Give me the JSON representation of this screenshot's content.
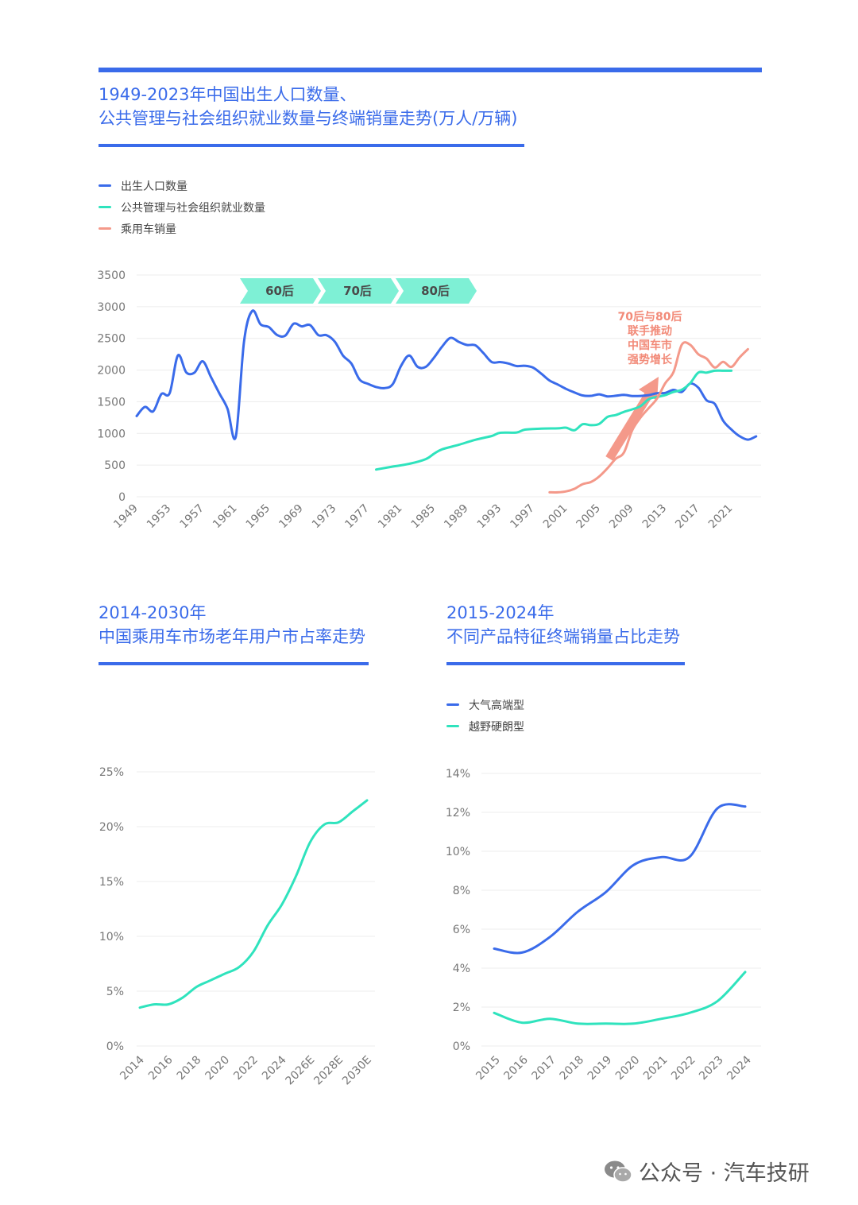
{
  "chart1": {
    "title_line1": "1949-2023年中国出生人口数量、",
    "title_line2": "公共管理与社会组织就业数量与终端销量走势(万人/万辆)",
    "legend": [
      {
        "name": "出生人口数量",
        "color": "#3a6bea"
      },
      {
        "name": "公共管理与社会组织就业数量",
        "color": "#2fe3bd"
      },
      {
        "name": "乘用车销量",
        "color": "#f4998a"
      }
    ],
    "y_ticks": [
      "3500",
      "3000",
      "2500",
      "2000",
      "1500",
      "1000",
      "500",
      "0"
    ],
    "x_ticks": [
      "1949",
      "1953",
      "1957",
      "1961",
      "1965",
      "1969",
      "1973",
      "1977",
      "1981",
      "1985",
      "1989",
      "1993",
      "1997",
      "2001",
      "2005",
      "2009",
      "2013",
      "2017",
      "2021"
    ],
    "generation_labels": [
      "60后",
      "70后",
      "80后"
    ],
    "annotation": [
      "70后与80后",
      "联手推动",
      "中国车市",
      "强势增长"
    ]
  },
  "chart2": {
    "title_line1": "2014-2030年",
    "title_line2": "中国乘用车市场老年用户市占率走势",
    "y_ticks": [
      "25%",
      "20%",
      "15%",
      "10%",
      "5%",
      "0%"
    ],
    "x_ticks": [
      "2014",
      "2016",
      "2018",
      "2020",
      "2022",
      "2024",
      "2026E",
      "2028E",
      "2030E"
    ]
  },
  "chart3": {
    "title_line1": "2015-2024年",
    "title_line2": "不同产品特征终端销量占比走势",
    "legend": [
      {
        "name": "大气高端型",
        "color": "#3a6bea"
      },
      {
        "name": "越野硬朗型",
        "color": "#2fe3bd"
      }
    ],
    "y_ticks": [
      "14%",
      "12%",
      "10%",
      "8%",
      "6%",
      "4%",
      "2%",
      "0%"
    ],
    "x_ticks": [
      "2015",
      "2016",
      "2017",
      "2018",
      "2019",
      "2020",
      "2021",
      "2022",
      "2023",
      "2024"
    ]
  },
  "chart_data": [
    {
      "type": "line",
      "ylim": [
        0,
        3500
      ],
      "xlim": [
        1949,
        2023
      ],
      "series": [
        {
          "name": "出生人口数量",
          "color": "#3a6bea",
          "points": [
            [
              1949,
              1275
            ],
            [
              1950,
              1419
            ],
            [
              1951,
              1349
            ],
            [
              1952,
              1622
            ],
            [
              1953,
              1637
            ],
            [
              1954,
              2232
            ],
            [
              1955,
              1965
            ],
            [
              1956,
              1961
            ],
            [
              1957,
              2138
            ],
            [
              1958,
              1889
            ],
            [
              1959,
              1635
            ],
            [
              1960,
              1389
            ],
            [
              1961,
              949
            ],
            [
              1962,
              2451
            ],
            [
              1963,
              2934
            ],
            [
              1964,
              2721
            ],
            [
              1965,
              2679
            ],
            [
              1966,
              2554
            ],
            [
              1967,
              2543
            ],
            [
              1968,
              2731
            ],
            [
              1969,
              2690
            ],
            [
              1970,
              2710
            ],
            [
              1971,
              2551
            ],
            [
              1972,
              2550
            ],
            [
              1973,
              2447
            ],
            [
              1974,
              2226
            ],
            [
              1975,
              2102
            ],
            [
              1976,
              1849
            ],
            [
              1977,
              1783
            ],
            [
              1978,
              1733
            ],
            [
              1979,
              1715
            ],
            [
              1980,
              1776
            ],
            [
              1981,
              2064
            ],
            [
              1982,
              2230
            ],
            [
              1983,
              2052
            ],
            [
              1984,
              2050
            ],
            [
              1985,
              2196
            ],
            [
              1986,
              2374
            ],
            [
              1987,
              2508
            ],
            [
              1988,
              2445
            ],
            [
              1989,
              2396
            ],
            [
              1990,
              2391
            ],
            [
              1991,
              2265
            ],
            [
              1992,
              2125
            ],
            [
              1993,
              2126
            ],
            [
              1994,
              2104
            ],
            [
              1995,
              2063
            ],
            [
              1996,
              2067
            ],
            [
              1997,
              2038
            ],
            [
              1998,
              1942
            ],
            [
              1999,
              1834
            ],
            [
              2000,
              1771
            ],
            [
              2001,
              1702
            ],
            [
              2002,
              1647
            ],
            [
              2003,
              1599
            ],
            [
              2004,
              1593
            ],
            [
              2005,
              1617
            ],
            [
              2006,
              1584
            ],
            [
              2007,
              1594
            ],
            [
              2008,
              1608
            ],
            [
              2009,
              1591
            ],
            [
              2010,
              1592
            ],
            [
              2011,
              1604
            ],
            [
              2012,
              1635
            ],
            [
              2013,
              1640
            ],
            [
              2014,
              1687
            ],
            [
              2015,
              1655
            ],
            [
              2016,
              1786
            ],
            [
              2017,
              1723
            ],
            [
              2018,
              1523
            ],
            [
              2019,
              1465
            ],
            [
              2020,
              1202
            ],
            [
              2021,
              1062
            ],
            [
              2022,
              956
            ],
            [
              2023,
              902
            ],
            [
              2024,
              954
            ]
          ]
        },
        {
          "name": "公共管理与社会组织就业数量",
          "color": "#2fe3bd",
          "points": [
            [
              1978,
              430
            ],
            [
              1980,
              477
            ],
            [
              1982,
              520
            ],
            [
              1984,
              594
            ],
            [
              1985,
              680
            ],
            [
              1986,
              750
            ],
            [
              1988,
              820
            ],
            [
              1990,
              900
            ],
            [
              1992,
              960
            ],
            [
              1993,
              1010
            ],
            [
              1995,
              1015
            ],
            [
              1996,
              1060
            ],
            [
              1998,
              1075
            ],
            [
              2000,
              1080
            ],
            [
              2001,
              1090
            ],
            [
              2002,
              1050
            ],
            [
              2003,
              1145
            ],
            [
              2004,
              1130
            ],
            [
              2005,
              1150
            ],
            [
              2006,
              1260
            ],
            [
              2007,
              1290
            ],
            [
              2008,
              1340
            ],
            [
              2009,
              1380
            ],
            [
              2010,
              1430
            ],
            [
              2011,
              1540
            ],
            [
              2012,
              1575
            ],
            [
              2013,
              1605
            ],
            [
              2014,
              1655
            ],
            [
              2015,
              1690
            ],
            [
              2016,
              1790
            ],
            [
              2017,
              1960
            ],
            [
              2018,
              1960
            ],
            [
              2019,
              1990
            ],
            [
              2020,
              1990
            ],
            [
              2021,
              1990
            ]
          ]
        },
        {
          "name": "乘用车销量",
          "color": "#f4998a",
          "points": [
            [
              1999,
              70
            ],
            [
              2000,
              70
            ],
            [
              2001,
              85
            ],
            [
              2002,
              126
            ],
            [
              2003,
              200
            ],
            [
              2004,
              233
            ],
            [
              2005,
              320
            ],
            [
              2006,
              450
            ],
            [
              2007,
              600
            ],
            [
              2008,
              700
            ],
            [
              2009,
              1050
            ],
            [
              2010,
              1250
            ],
            [
              2011,
              1400
            ],
            [
              2012,
              1550
            ],
            [
              2013,
              1793
            ],
            [
              2014,
              1970
            ],
            [
              2015,
              2400
            ],
            [
              2016,
              2400
            ],
            [
              2017,
              2250
            ],
            [
              2018,
              2180
            ],
            [
              2019,
              2040
            ],
            [
              2020,
              2130
            ],
            [
              2021,
              2050
            ],
            [
              2022,
              2200
            ],
            [
              2023,
              2330
            ]
          ]
        }
      ]
    },
    {
      "type": "line",
      "ylim": [
        0,
        25
      ],
      "categories": [
        "2014",
        "2015",
        "2016",
        "2017",
        "2018",
        "2019",
        "2020",
        "2021",
        "2022",
        "2023",
        "2024",
        "2025",
        "2026E",
        "2027E",
        "2028E",
        "2029E",
        "2030E"
      ],
      "series": [
        {
          "color": "#2fe3bd",
          "values": [
            3.5,
            3.8,
            3.8,
            4.4,
            5.4,
            6.0,
            6.6,
            7.2,
            8.6,
            11.0,
            12.9,
            15.5,
            18.6,
            20.2,
            20.4,
            21.4,
            22.4
          ]
        }
      ]
    },
    {
      "type": "line",
      "ylim": [
        0,
        14
      ],
      "categories": [
        "2015",
        "2016",
        "2017",
        "2018",
        "2019",
        "2020",
        "2021",
        "2022",
        "2023",
        "2024"
      ],
      "series": [
        {
          "name": "大气高端型",
          "color": "#3a6bea",
          "values": [
            5.0,
            4.8,
            5.6,
            6.9,
            7.9,
            9.3,
            9.7,
            9.7,
            12.2,
            12.3
          ]
        },
        {
          "name": "越野硬朗型",
          "color": "#2fe3bd",
          "values": [
            1.7,
            1.2,
            1.4,
            1.15,
            1.15,
            1.15,
            1.4,
            1.7,
            2.3,
            3.8
          ]
        }
      ]
    }
  ],
  "watermark": "公众号 · 汽车技研"
}
